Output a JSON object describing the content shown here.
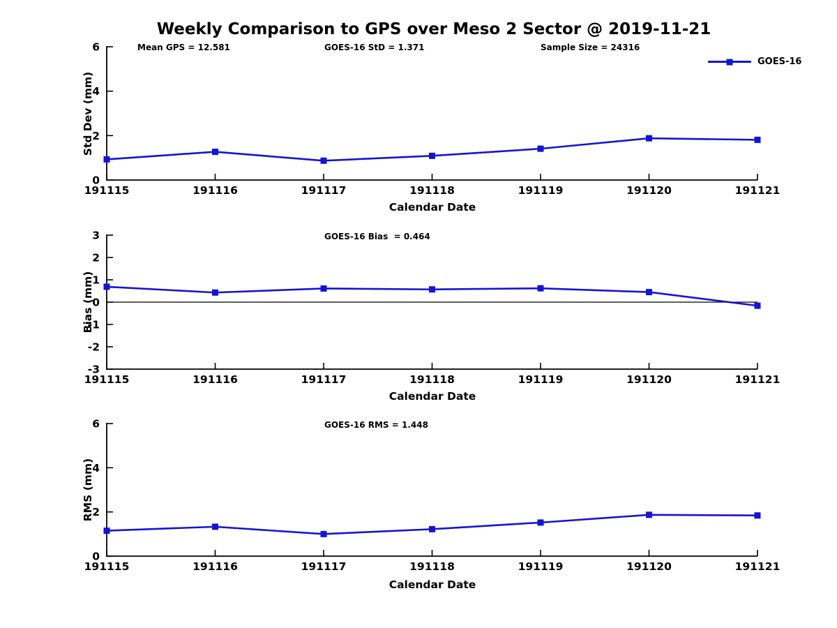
{
  "figure": {
    "title": "Weekly Comparison to GPS over Meso 2 Sector @ 2019-11-21"
  },
  "colors": {
    "series": "#1414d4",
    "axis": "#000000",
    "text": "#000000",
    "background": "#ffffff"
  },
  "legend": {
    "label": "GOES-16",
    "marker": "filled-square",
    "position": "top-right"
  },
  "chart_data": [
    {
      "type": "line",
      "name": "std-dev-vs-date",
      "xlabel": "Calendar Date",
      "ylabel": "Std Dev (mm)",
      "x": [
        "191115",
        "191116",
        "191117",
        "191118",
        "191119",
        "191120",
        "191121"
      ],
      "series": [
        {
          "name": "GOES-16",
          "values": [
            0.93,
            1.27,
            0.87,
            1.09,
            1.41,
            1.88,
            1.81
          ]
        }
      ],
      "ylim": [
        0,
        6
      ],
      "yticks": [
        0,
        2,
        4,
        6
      ],
      "zero_line": false,
      "grid": false,
      "annotations": [
        {
          "text": "Mean GPS = 12.581"
        },
        {
          "text": "GOES-16 StD = 1.371"
        },
        {
          "text": "Sample Size = 24316"
        }
      ]
    },
    {
      "type": "line",
      "name": "bias-vs-date",
      "xlabel": "Calendar Date",
      "ylabel": "Bias (mm)",
      "x": [
        "191115",
        "191116",
        "191117",
        "191118",
        "191119",
        "191120",
        "191121"
      ],
      "series": [
        {
          "name": "GOES-16",
          "values": [
            0.69,
            0.43,
            0.61,
            0.57,
            0.62,
            0.45,
            -0.16
          ]
        }
      ],
      "ylim": [
        -3,
        3
      ],
      "yticks": [
        -3,
        -2,
        -1,
        0,
        1,
        2,
        3
      ],
      "zero_line": true,
      "grid": false,
      "annotations": [
        {
          "text": "GOES-16 Bias  = 0.464"
        }
      ]
    },
    {
      "type": "line",
      "name": "rms-vs-date",
      "xlabel": "Calendar Date",
      "ylabel": "RMS (mm)",
      "x": [
        "191115",
        "191116",
        "191117",
        "191118",
        "191119",
        "191120",
        "191121"
      ],
      "series": [
        {
          "name": "GOES-16",
          "values": [
            1.15,
            1.33,
            1.0,
            1.22,
            1.52,
            1.87,
            1.84
          ]
        }
      ],
      "ylim": [
        0,
        6
      ],
      "yticks": [
        0,
        2,
        4,
        6
      ],
      "zero_line": false,
      "grid": false,
      "annotations": [
        {
          "text": "GOES-16 RMS = 1.448"
        }
      ]
    }
  ]
}
